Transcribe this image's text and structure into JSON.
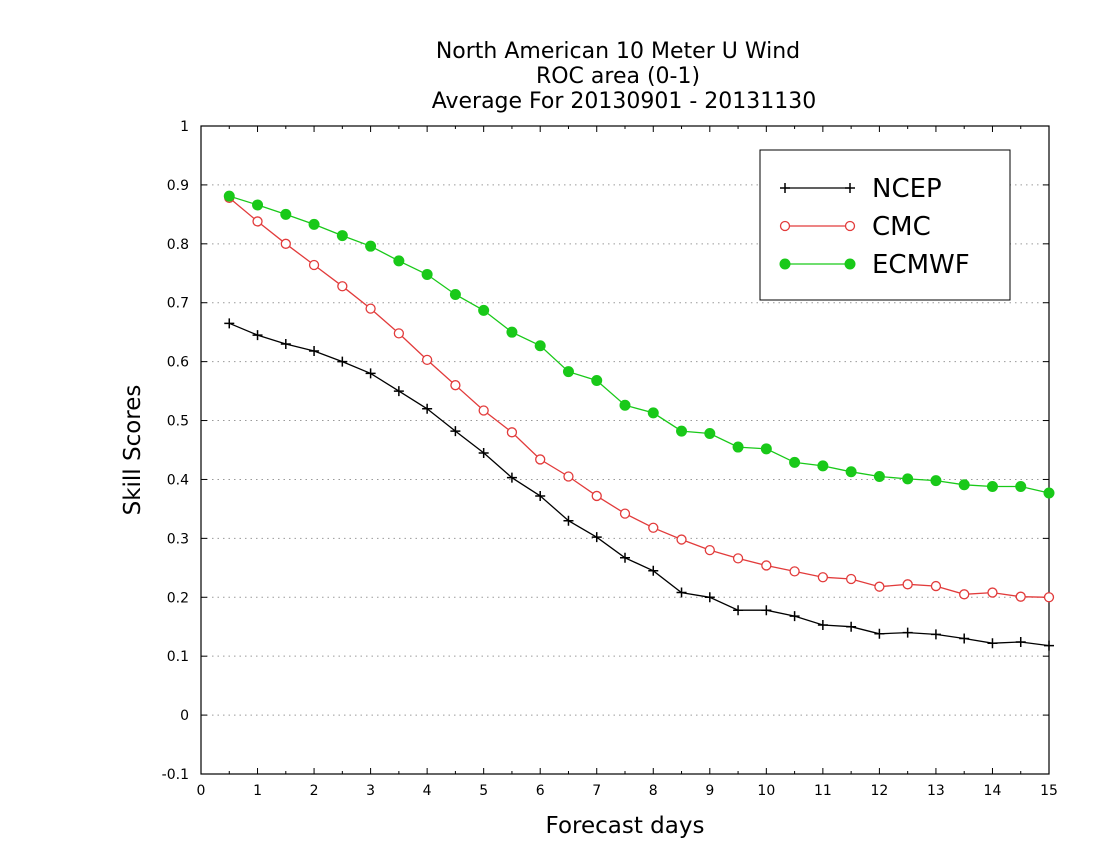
{
  "chart_data": {
    "type": "line",
    "title": [
      "North American 10 Meter U Wind",
      "ROC area (0-1)",
      "Average For 20130901 - 20131130"
    ],
    "xlabel": "Forecast days",
    "ylabel": "Skill Scores",
    "xlim": [
      0,
      15
    ],
    "ylim": [
      -0.1,
      1
    ],
    "xticks": [
      "0",
      "1",
      "2",
      "3",
      "4",
      "5",
      "6",
      "7",
      "8",
      "9",
      "10",
      "11",
      "12",
      "13",
      "14",
      "15"
    ],
    "yticks": [
      "-0.1",
      "0",
      "0.1",
      "0.2",
      "0.3",
      "0.4",
      "0.5",
      "0.6",
      "0.7",
      "0.8",
      "0.9",
      "1"
    ],
    "grid": "dotted horizontal",
    "legend_position": "top-right",
    "x": [
      0.5,
      1,
      1.5,
      2,
      2.5,
      3,
      3.5,
      4,
      4.5,
      5,
      5.5,
      6,
      6.5,
      7,
      7.5,
      8,
      8.5,
      9,
      9.5,
      10,
      10.5,
      11,
      11.5,
      12,
      12.5,
      13,
      13.5,
      14,
      14.5,
      15
    ],
    "series": [
      {
        "name": "NCEP",
        "color": "#000000",
        "marker": "plus",
        "values": [
          0.665,
          0.645,
          0.63,
          0.618,
          0.6,
          0.58,
          0.55,
          0.52,
          0.482,
          0.445,
          0.403,
          0.372,
          0.33,
          0.302,
          0.267,
          0.245,
          0.208,
          0.2,
          0.178,
          0.178,
          0.168,
          0.153,
          0.15,
          0.138,
          0.14,
          0.137,
          0.13,
          0.122,
          0.124,
          0.118
        ]
      },
      {
        "name": "CMC",
        "color": "#e23b3b",
        "marker": "open-circle",
        "values": [
          0.878,
          0.838,
          0.8,
          0.764,
          0.728,
          0.69,
          0.648,
          0.603,
          0.56,
          0.517,
          0.48,
          0.434,
          0.405,
          0.372,
          0.342,
          0.318,
          0.298,
          0.28,
          0.266,
          0.254,
          0.244,
          0.234,
          0.231,
          0.218,
          0.222,
          0.219,
          0.205,
          0.208,
          0.201,
          0.2
        ]
      },
      {
        "name": "ECMWF",
        "color": "#19c919",
        "marker": "filled-circle",
        "values": [
          0.881,
          0.866,
          0.85,
          0.833,
          0.814,
          0.796,
          0.771,
          0.748,
          0.714,
          0.687,
          0.65,
          0.627,
          0.583,
          0.568,
          0.526,
          0.513,
          0.482,
          0.478,
          0.455,
          0.452,
          0.429,
          0.423,
          0.413,
          0.405,
          0.401,
          0.398,
          0.391,
          0.388,
          0.388,
          0.377
        ]
      }
    ]
  }
}
